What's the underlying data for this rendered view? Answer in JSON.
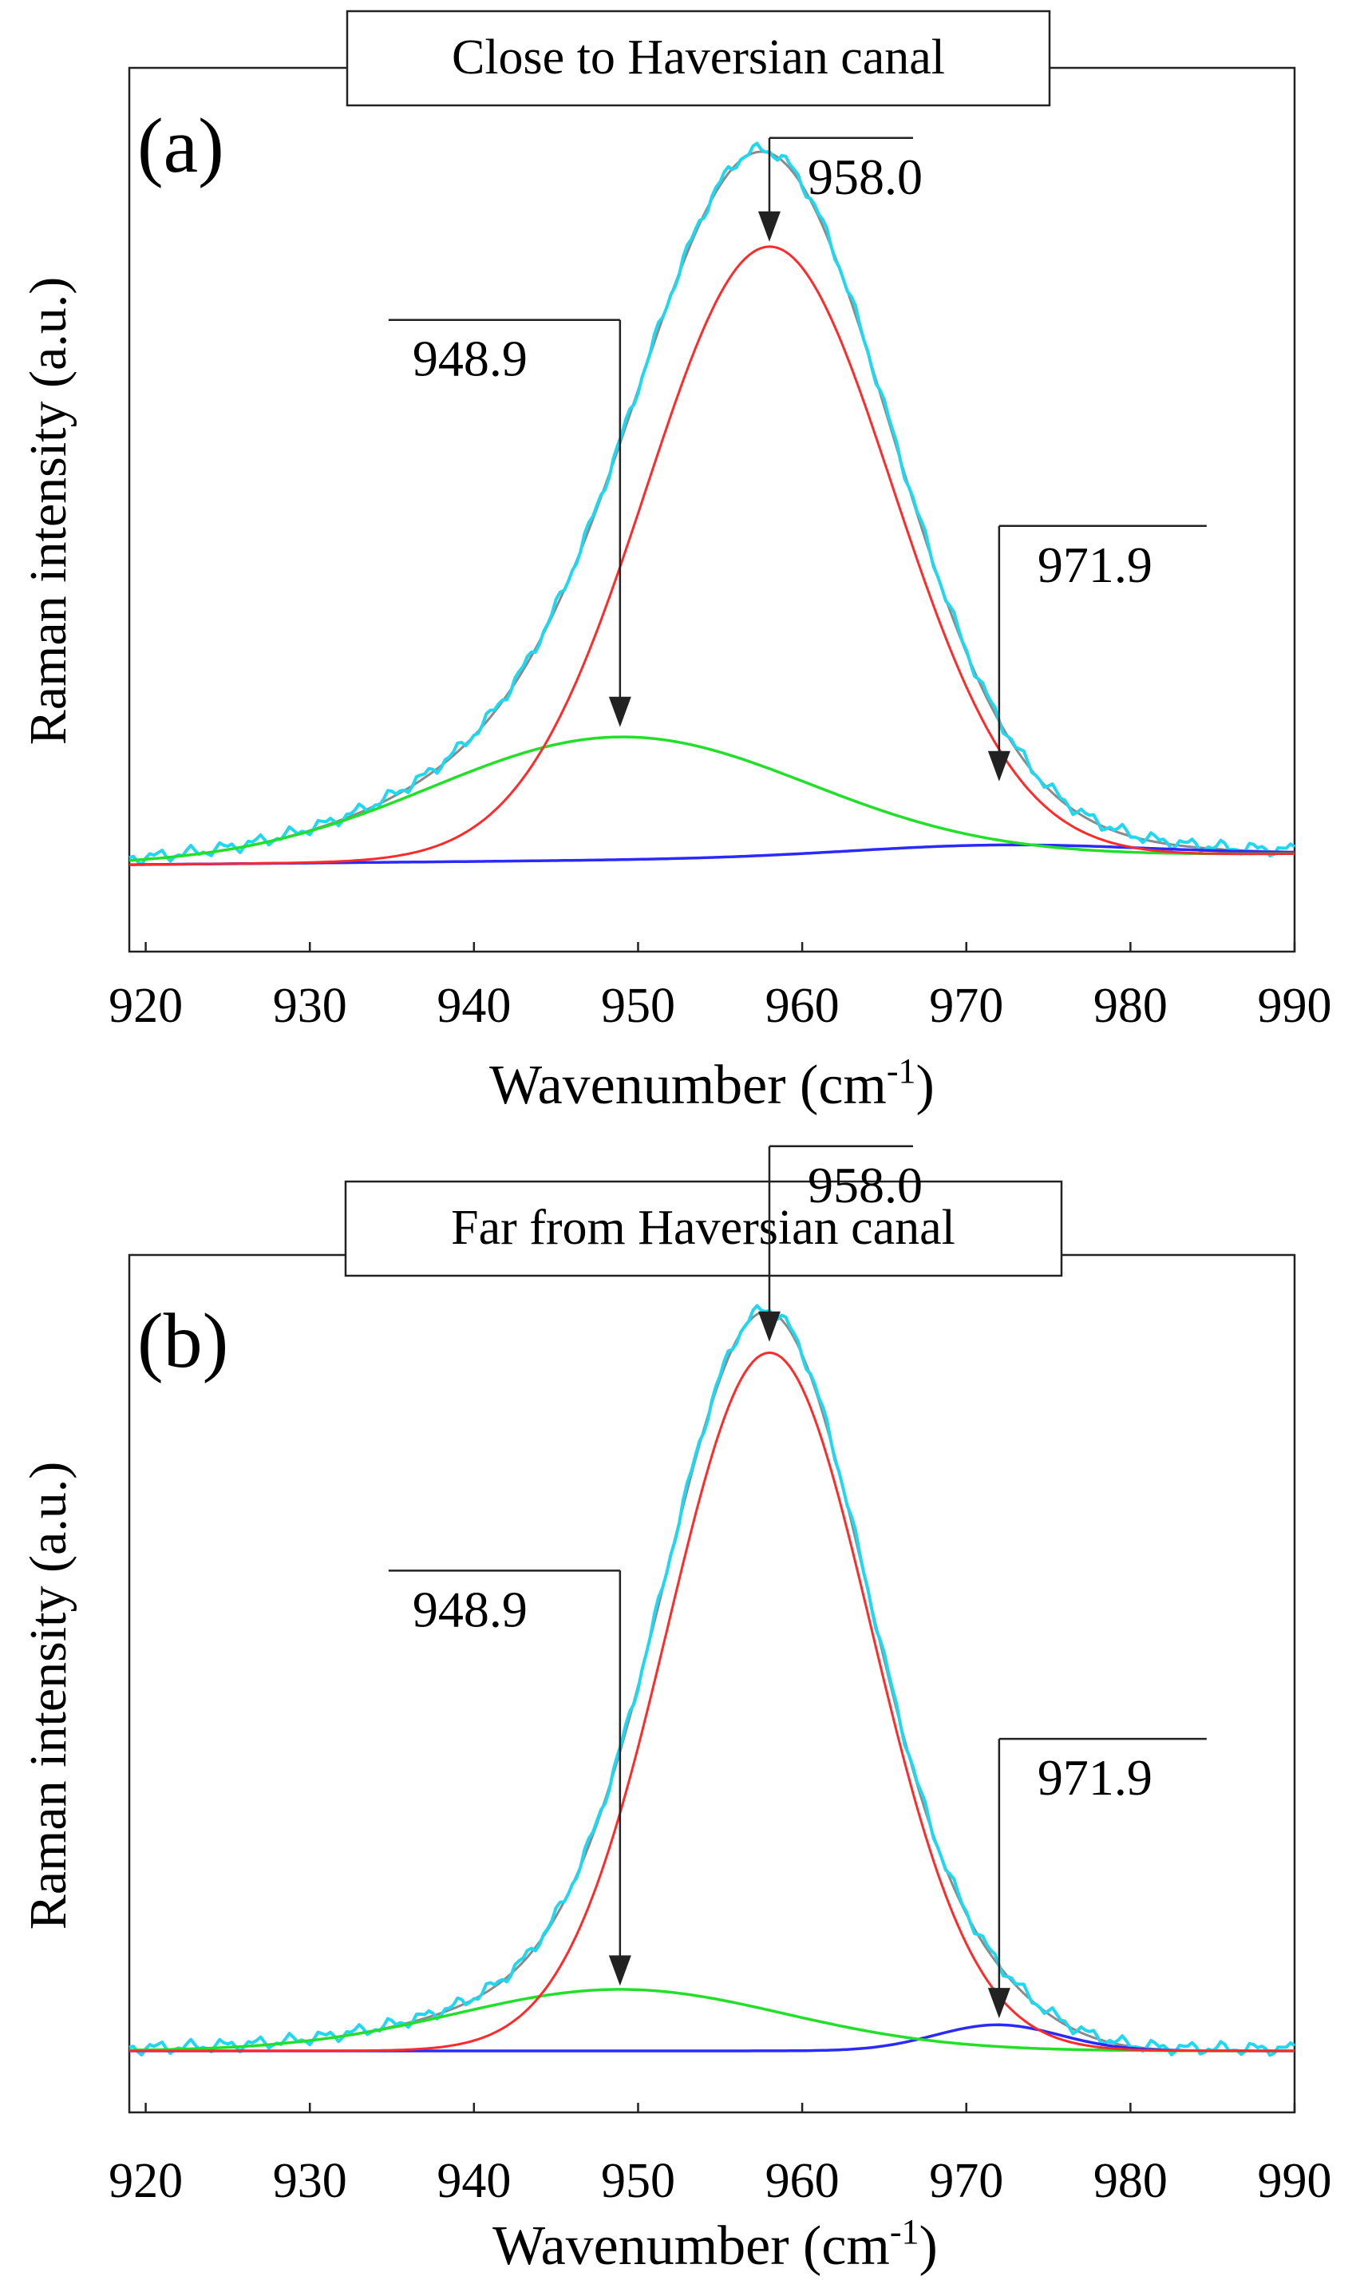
{
  "chart_data": [
    {
      "type": "line",
      "panel_label": "(a)",
      "title": "Close to Haversian canal",
      "xlabel": "Wavenumber (cm",
      "xlabel_sup": "-1",
      "xlabel_close": ")",
      "ylabel": "Raman intensity (a.u.)",
      "xlim": [
        919,
        990
      ],
      "ylim": [
        -0.12,
        1.1
      ],
      "xticks": [
        920,
        930,
        940,
        950,
        960,
        970,
        980,
        990
      ],
      "grid": false,
      "y_ticks_shown": false,
      "series": [
        {
          "name": "measured spectrum",
          "color": "#1fd8ef",
          "width": 4
        },
        {
          "name": "cumulative fit",
          "color": "#8a8a8a",
          "width": 3
        },
        {
          "name": "band 958.0",
          "color": "#ff2a2a",
          "width": 3
        },
        {
          "name": "band 948.9",
          "color": "#22e02a",
          "width": 3.5
        },
        {
          "name": "band 971.9",
          "color": "#2a2aff",
          "width": 3.5
        }
      ],
      "components": [
        {
          "name": "band 958.0",
          "center": 958.0,
          "height": 0.845,
          "sigma": 7.5
        },
        {
          "name": "band 948.9",
          "center": 948.9,
          "height": 0.17,
          "sigma": 11.5
        },
        {
          "name": "band 971.9",
          "center": 971.9,
          "height": 0.016,
          "sigma": 9
        }
      ],
      "baseline": {
        "start": [
          919,
          0.0
        ],
        "end": [
          990,
          0.015
        ]
      },
      "peak_labels": [
        {
          "text": "958.0",
          "x": 958.0,
          "y": 0.86
        },
        {
          "text": "948.9",
          "x": 948.9,
          "y": 0.19
        },
        {
          "text": "971.9",
          "x": 972.0,
          "y": 0.115
        }
      ]
    },
    {
      "type": "line",
      "panel_label": "(b)",
      "title": "Far from Haversian canal",
      "xlabel": "Wavenumber (cm",
      "xlabel_sup": "-1",
      "xlabel_close": ")",
      "ylabel": "Raman intensity (a.u.)",
      "xlim": [
        919,
        990
      ],
      "ylim": [
        -0.085,
        1.1
      ],
      "xticks": [
        920,
        930,
        940,
        950,
        960,
        970,
        980,
        990
      ],
      "grid": false,
      "y_ticks_shown": false,
      "series": [
        {
          "name": "measured spectrum",
          "color": "#1fd8ef",
          "width": 4
        },
        {
          "name": "cumulative fit",
          "color": "#8a8a8a",
          "width": 3
        },
        {
          "name": "band 958.0",
          "color": "#ff2a2a",
          "width": 3
        },
        {
          "name": "band 948.9",
          "color": "#22e02a",
          "width": 3.5
        },
        {
          "name": "band 971.9",
          "color": "#2a2aff",
          "width": 3.5
        }
      ],
      "components": [
        {
          "name": "band 958.0",
          "center": 958.0,
          "height": 0.965,
          "sigma": 6.2
        },
        {
          "name": "band 948.9",
          "center": 948.9,
          "height": 0.085,
          "sigma": 10
        },
        {
          "name": "band 971.9",
          "center": 971.9,
          "height": 0.036,
          "sigma": 3.8
        }
      ],
      "baseline": {
        "start": [
          919,
          0.0
        ],
        "end": [
          990,
          0.0
        ]
      },
      "peak_labels": [
        {
          "text": "958.0",
          "x": 958.0,
          "y": 0.98
        },
        {
          "text": "948.9",
          "x": 948.9,
          "y": 0.09
        },
        {
          "text": "971.9",
          "x": 972.0,
          "y": 0.045
        }
      ]
    }
  ]
}
